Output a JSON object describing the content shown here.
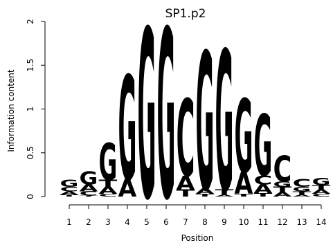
{
  "chart_data": {
    "type": "sequence-logo",
    "title": "SP1.p2",
    "xlabel": "Position",
    "ylabel": "Information content",
    "ylim": [
      0,
      2
    ],
    "yticks": [
      "0",
      "0.5",
      "1",
      "1.5",
      "2"
    ],
    "positions": [
      "1",
      "2",
      "3",
      "4",
      "5",
      "6",
      "7",
      "8",
      "9",
      "10",
      "11",
      "12",
      "13",
      "14"
    ],
    "colors": {
      "A": "#00cc00",
      "C": "#0000ee",
      "G": "#ffa500",
      "T": "#ff0000"
    },
    "stacks": [
      [
        {
          "letter": "T",
          "height": 0.02
        },
        {
          "letter": "A",
          "height": 0.04
        },
        {
          "letter": "C",
          "height": 0.05
        },
        {
          "letter": "G",
          "height": 0.08
        }
      ],
      [
        {
          "letter": "T",
          "height": 0.01
        },
        {
          "letter": "C",
          "height": 0.05
        },
        {
          "letter": "A",
          "height": 0.08
        },
        {
          "letter": "G",
          "height": 0.15
        }
      ],
      [
        {
          "letter": "C",
          "height": 0.03
        },
        {
          "letter": "A",
          "height": 0.08
        },
        {
          "letter": "T",
          "height": 0.08
        },
        {
          "letter": "G",
          "height": 0.42
        }
      ],
      [
        {
          "letter": "A",
          "height": 0.2
        },
        {
          "letter": "G",
          "height": 1.19
        }
      ],
      [
        {
          "letter": "G",
          "height": 1.93
        }
      ],
      [
        {
          "letter": "G",
          "height": 1.93
        }
      ],
      [
        {
          "letter": "T",
          "height": 0.08
        },
        {
          "letter": "A",
          "height": 0.16
        },
        {
          "letter": "C",
          "height": 0.88
        }
      ],
      [
        {
          "letter": "T",
          "height": 0.03
        },
        {
          "letter": "A",
          "height": 0.06
        },
        {
          "letter": "G",
          "height": 1.57
        }
      ],
      [
        {
          "letter": "A",
          "height": 0.02
        },
        {
          "letter": "T",
          "height": 0.06
        },
        {
          "letter": "G",
          "height": 1.6
        }
      ],
      [
        {
          "letter": "T",
          "height": 0.03
        },
        {
          "letter": "A",
          "height": 0.25
        },
        {
          "letter": "G",
          "height": 0.84
        }
      ],
      [
        {
          "letter": "T",
          "height": 0.04
        },
        {
          "letter": "A",
          "height": 0.1
        },
        {
          "letter": "C",
          "height": 0.1
        },
        {
          "letter": "G",
          "height": 0.7
        }
      ],
      [
        {
          "letter": "A",
          "height": 0.05
        },
        {
          "letter": "T",
          "height": 0.06
        },
        {
          "letter": "G",
          "height": 0.06
        },
        {
          "letter": "C",
          "height": 0.3
        }
      ],
      [
        {
          "letter": "A",
          "height": 0.02
        },
        {
          "letter": "T",
          "height": 0.04
        },
        {
          "letter": "G",
          "height": 0.05
        },
        {
          "letter": "C",
          "height": 0.09
        }
      ],
      [
        {
          "letter": "C",
          "height": 0.03
        },
        {
          "letter": "A",
          "height": 0.05
        },
        {
          "letter": "T",
          "height": 0.05
        },
        {
          "letter": "G",
          "height": 0.08
        }
      ]
    ]
  }
}
